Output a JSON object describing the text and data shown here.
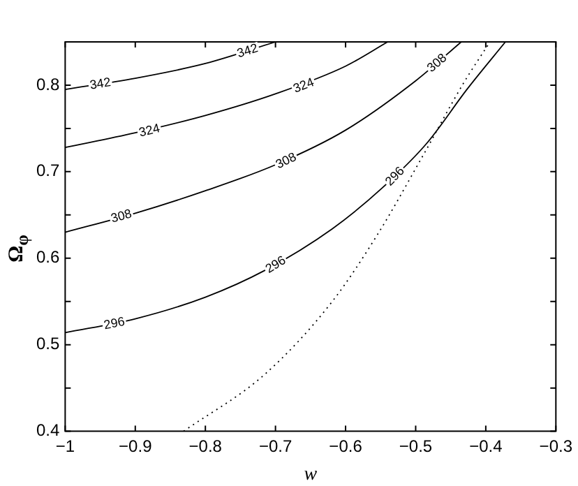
{
  "chart_data": {
    "type": "line",
    "xlabel": "w",
    "ylabel": "Ω$_{φ}$",
    "xlim": [
      -1,
      -0.3
    ],
    "ylim": [
      0.4,
      0.85
    ],
    "xticks": [
      {
        "value": -1,
        "label": "−1"
      },
      {
        "value": -0.9,
        "label": "−0.9"
      },
      {
        "value": -0.8,
        "label": "−0.8"
      },
      {
        "value": -0.7,
        "label": "−0.7"
      },
      {
        "value": -0.6,
        "label": "−0.6"
      },
      {
        "value": -0.5,
        "label": "−0.5"
      },
      {
        "value": -0.4,
        "label": "−0.4"
      },
      {
        "value": -0.3,
        "label": "−0.3"
      }
    ],
    "yticks": [
      0.4,
      {
        "value": 0.45,
        "label": null
      },
      0.5,
      {
        "value": 0.55,
        "label": null
      },
      0.6,
      {
        "value": 0.65,
        "label": null
      },
      0.7,
      {
        "value": 0.75,
        "label": null
      },
      0.8
    ],
    "grid": false,
    "legend": false,
    "marker": "none",
    "series": [
      {
        "color": "#000000",
        "line_style": "solid",
        "x": [
          -1,
          -0.9,
          -0.8,
          -0.7
        ],
        "values": [
          0.795,
          0.808,
          0.825,
          0.85
        ]
      },
      {
        "color": "#000000",
        "line_style": "solid",
        "x": [
          -1,
          -0.9,
          -0.8,
          -0.7,
          -0.6,
          -0.54
        ],
        "values": [
          0.728,
          0.745,
          0.765,
          0.79,
          0.822,
          0.85
        ]
      },
      {
        "color": "#000000",
        "line_style": "solid",
        "x": [
          -1,
          -0.9,
          -0.8,
          -0.7,
          -0.6,
          -0.5,
          -0.435
        ],
        "values": [
          0.63,
          0.652,
          0.678,
          0.708,
          0.748,
          0.805,
          0.85
        ]
      },
      {
        "color": "#000000",
        "line_style": "solid",
        "x": [
          -1,
          -0.9,
          -0.8,
          -0.715,
          -0.619,
          -0.548,
          -0.484,
          -0.426,
          -0.372
        ],
        "values": [
          0.514,
          0.53,
          0.555,
          0.586,
          0.634,
          0.681,
          0.733,
          0.796,
          0.85
        ]
      },
      {
        "color": "#000000",
        "line_style": "dotted",
        "x": [
          -0.831,
          -0.715,
          -0.619,
          -0.554,
          -0.49,
          -0.432,
          -0.394
        ],
        "values": [
          0.4,
          0.466,
          0.55,
          0.628,
          0.718,
          0.802,
          0.85
        ]
      }
    ],
    "annotations": [
      {
        "text": "342",
        "x": -0.95,
        "y": 0.802
      },
      {
        "text": "342",
        "x": -0.74,
        "y": 0.84
      },
      {
        "text": "324",
        "x": -0.88,
        "y": 0.748
      },
      {
        "text": "324",
        "x": -0.66,
        "y": 0.8
      },
      {
        "text": "308",
        "x": -0.92,
        "y": 0.649
      },
      {
        "text": "308",
        "x": -0.685,
        "y": 0.713
      },
      {
        "text": "308",
        "x": -0.47,
        "y": 0.826
      },
      {
        "text": "296",
        "x": -0.93,
        "y": 0.525
      },
      {
        "text": "296",
        "x": -0.7,
        "y": 0.593
      },
      {
        "text": "296",
        "x": -0.53,
        "y": 0.695
      }
    ]
  }
}
